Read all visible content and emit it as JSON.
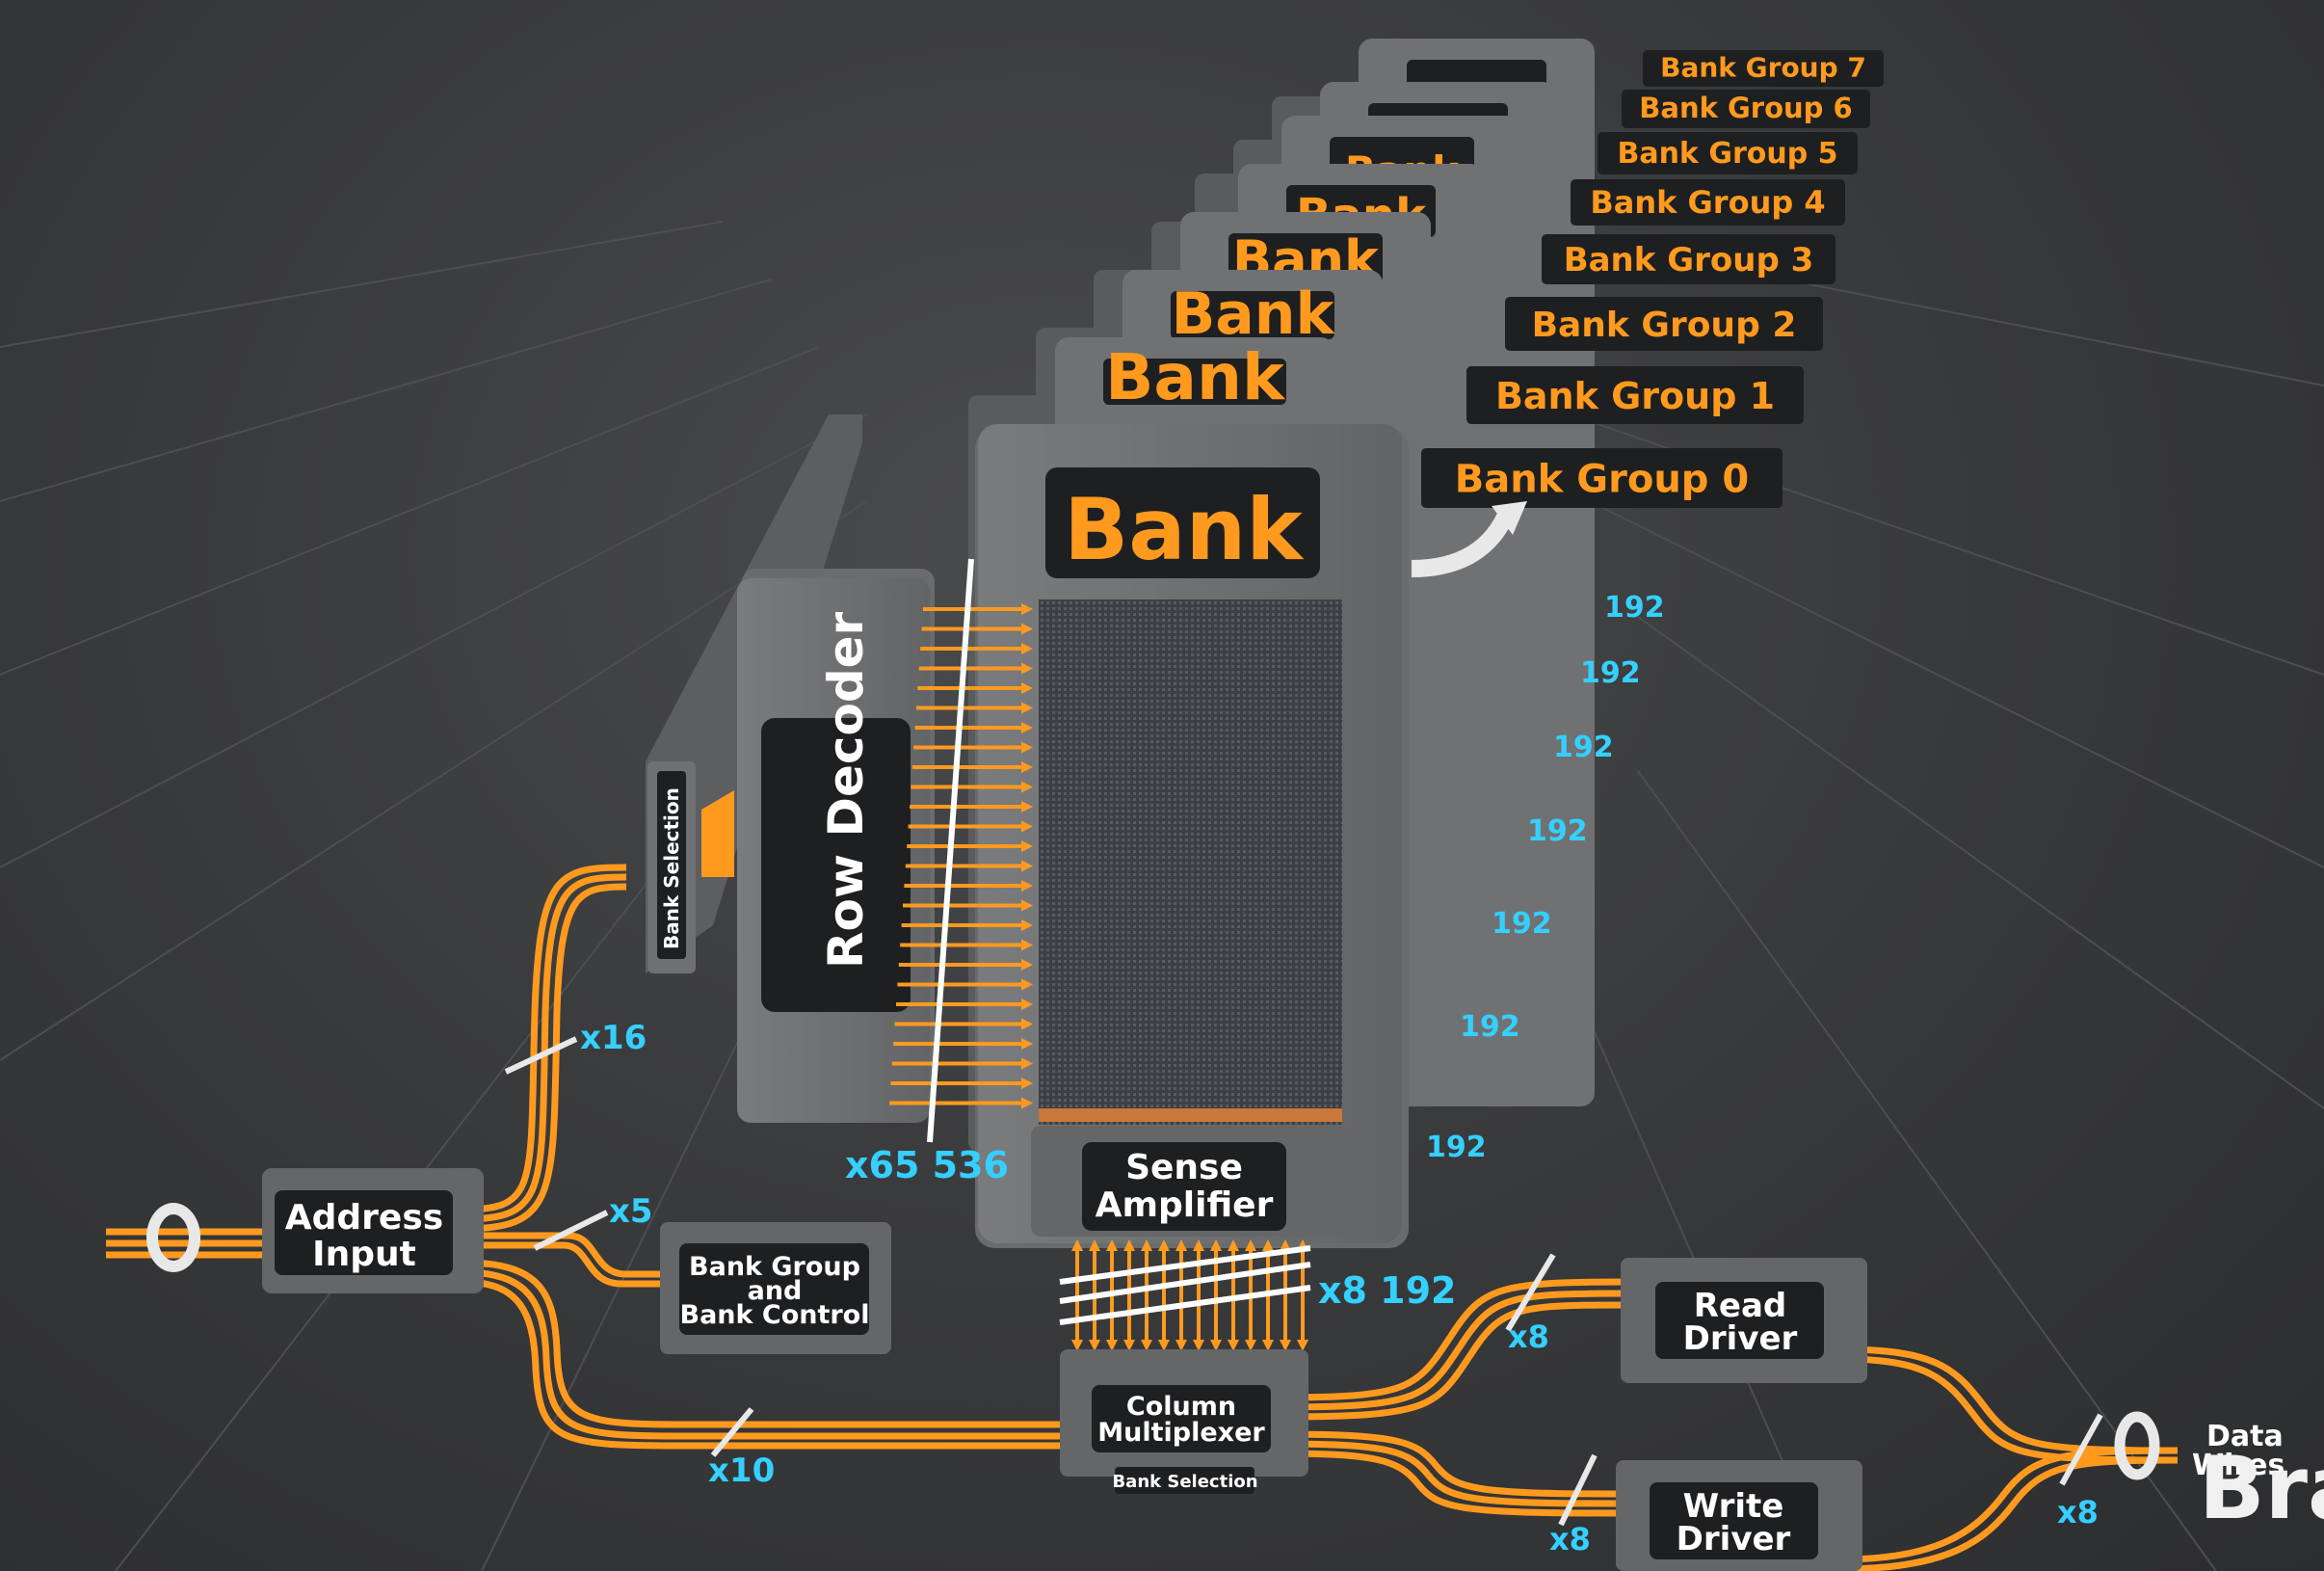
{
  "bank_groups": [
    "Bank Group 7",
    "Bank Group 6",
    "Bank Group 5",
    "Bank Group 4",
    "Bank Group 3",
    "Bank Group 2",
    "Bank Group 1",
    "Bank Group 0"
  ],
  "bank_title": "Bank",
  "row_decoder": "Row Decoder",
  "bank_selection": "Bank Selection",
  "sense_amplifier": "Sense Amplifier",
  "address_input": "Address Input",
  "bank_group_control": "Bank Group and Bank Control",
  "column_multiplexer": "Column Multiplexer",
  "column_bank_selection": "Bank Selection",
  "read_driver": "Read Driver",
  "write_driver": "Write Driver",
  "data_wires": "Data Wires",
  "counts": {
    "x16": "x16",
    "x5": "x5",
    "x10": "x10",
    "rows": "x65 536",
    "cols": "x8 192",
    "read_x8": "x8",
    "write_x8": "x8",
    "out_x8": "x8",
    "stack_192": "192"
  },
  "watermark": "Bra\nEdu",
  "colors": {
    "orange": "#ff9a1f",
    "cyan": "#35d0ff",
    "panel": "#6f7072",
    "label_bg": "#1e1f21"
  }
}
